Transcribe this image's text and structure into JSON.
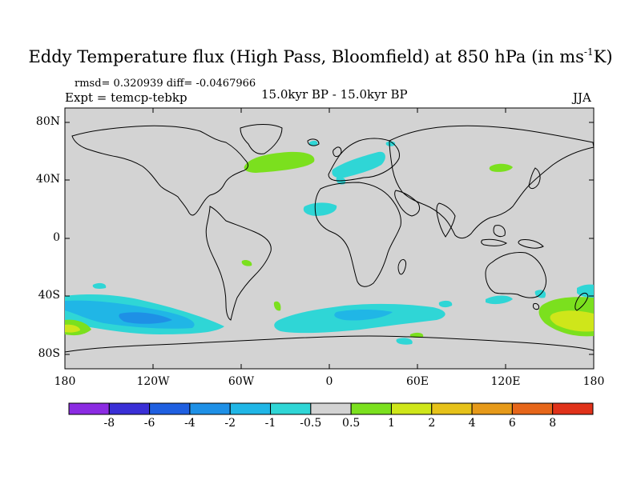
{
  "title": {
    "main": "Eddy Temperature flux (High Pass, Bloomfield) at 850 hPa (in ms",
    "sup": "-1",
    "end": "K)"
  },
  "stats": "rmsd= 0.320939 diff= -0.0467966",
  "experiment": "Expt = temcp-tebkp",
  "period": "15.0kyr BP - 15.0kyr BP",
  "season": "JJA",
  "map": {
    "projection": "cylindrical equidistant",
    "lat_range": [
      -90,
      90
    ],
    "lon_range": [
      -180,
      180
    ],
    "lat_ticks": [
      "80N",
      "40N",
      "0",
      "40S",
      "80S"
    ],
    "lon_ticks": [
      "180",
      "120W",
      "60W",
      "0",
      "60E",
      "120E",
      "180"
    ],
    "background_color": "#d3d3d3",
    "coastline_color": "#000000"
  },
  "colorbar": {
    "colors": [
      "#8b2be2",
      "#3a2fd6",
      "#1f5fe0",
      "#1e90e6",
      "#20b6e6",
      "#2fd6d6",
      "#d3d3d3",
      "#7be01e",
      "#cfe61a",
      "#e6c21a",
      "#e69a1a",
      "#e6661a",
      "#e0321a"
    ],
    "labels": [
      "-8",
      "-6",
      "-4",
      "-2",
      "-1",
      "-0.5",
      "0.5",
      "1",
      "2",
      "4",
      "6",
      "8"
    ]
  },
  "anomalies": [
    {
      "region": "North Atlantic",
      "level": "1"
    },
    {
      "region": "Europe / Mediterranean",
      "level": "-0.5"
    },
    {
      "region": "North Africa",
      "level": "-0.5"
    },
    {
      "region": "Mongolia",
      "level": "1"
    },
    {
      "region": "Southern Ocean Pacific sector",
      "level": "-1"
    },
    {
      "region": "Southern Ocean Atlantic / Indian sector",
      "level": "-0.5"
    },
    {
      "region": "Southwest Pacific / Tasman",
      "level": "2"
    }
  ]
}
